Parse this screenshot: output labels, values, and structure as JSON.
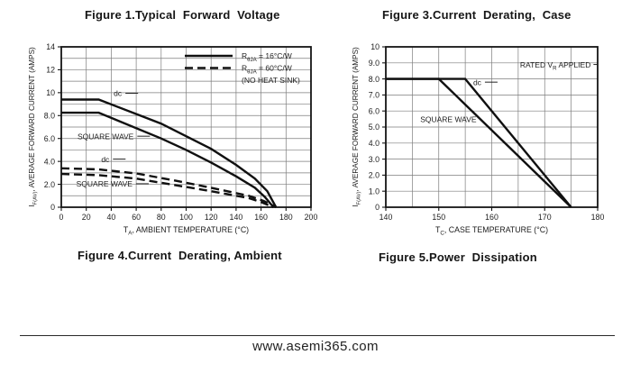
{
  "page": {
    "website": "www.asemi365.com",
    "ink_color": "#1c1c1c",
    "background_color": "#ffffff"
  },
  "chart_data": [
    {
      "type": "line",
      "title": "Figure 1.Typical  Forward  Voltage",
      "caption": "Figure 4.Current  Derating, Ambient",
      "xlabel": [
        {
          "t": "T"
        },
        {
          "t": "A",
          "sub": true
        },
        {
          "t": ", AMBIENT TEMPERATURE (°C)"
        }
      ],
      "ylabel": [
        {
          "t": "I"
        },
        {
          "t": "F(AV)",
          "sub": true
        },
        {
          "t": ", AVERAGE FORWARD CURRENT (AMPS)"
        }
      ],
      "xlim": [
        0,
        200
      ],
      "ylim": [
        0,
        14
      ],
      "grid": {
        "x_step": 20,
        "y_step": 1,
        "on": true
      },
      "xticks": [
        {
          "v": 0,
          "l": "0"
        },
        {
          "v": 20,
          "l": "20"
        },
        {
          "v": 40,
          "l": "40"
        },
        {
          "v": 60,
          "l": "60"
        },
        {
          "v": 80,
          "l": "80"
        },
        {
          "v": 100,
          "l": "100"
        },
        {
          "v": 120,
          "l": "120"
        },
        {
          "v": 140,
          "l": "140"
        },
        {
          "v": 160,
          "l": "160"
        },
        {
          "v": 180,
          "l": "180"
        },
        {
          "v": 200,
          "l": "200"
        }
      ],
      "yticks": [
        {
          "v": 0,
          "l": "0"
        },
        {
          "v": 2,
          "l": "2.0"
        },
        {
          "v": 4,
          "l": "4.0"
        },
        {
          "v": 6,
          "l": "6.0"
        },
        {
          "v": 8,
          "l": "8.0"
        },
        {
          "v": 10,
          "l": "10"
        },
        {
          "v": 12,
          "l": "12"
        },
        {
          "v": 14,
          "l": "14"
        }
      ],
      "legend": {
        "position": "top-right",
        "items": [
          {
            "style": "solid",
            "segments": [
              {
                "t": "R"
              },
              {
                "t": "θJA",
                "sub": true
              },
              {
                "t": " = 16°C/W"
              }
            ]
          },
          {
            "style": "dashed",
            "segments": [
              {
                "t": "R"
              },
              {
                "t": "θJA",
                "sub": true
              },
              {
                "t": " = 60°C/W"
              }
            ]
          },
          {
            "segments": [
              {
                "t": "(NO HEAT SINK)"
              }
            ]
          }
        ]
      },
      "series": [
        {
          "name": "dc, RthJA=16C/W",
          "style": "solid",
          "points": [
            [
              0,
              9.4
            ],
            [
              30,
              9.4
            ],
            [
              80,
              7.3
            ],
            [
              100,
              6.2
            ],
            [
              120,
              5.1
            ],
            [
              140,
              3.7
            ],
            [
              155,
              2.5
            ],
            [
              165,
              1.4
            ],
            [
              172,
              0
            ]
          ]
        },
        {
          "name": "square wave, RthJA=16C/W",
          "style": "solid",
          "points": [
            [
              0,
              8.25
            ],
            [
              30,
              8.25
            ],
            [
              80,
              6.0
            ],
            [
              100,
              5.0
            ],
            [
              120,
              3.9
            ],
            [
              140,
              2.7
            ],
            [
              155,
              1.7
            ],
            [
              163,
              0.9
            ],
            [
              170,
              0
            ]
          ]
        },
        {
          "name": "dc, RthJA=60C/W (no heat sink)",
          "style": "dashed",
          "points": [
            [
              0,
              3.4
            ],
            [
              30,
              3.3
            ],
            [
              60,
              2.95
            ],
            [
              90,
              2.35
            ],
            [
              120,
              1.7
            ],
            [
              150,
              1.0
            ],
            [
              162,
              0.55
            ],
            [
              172,
              0
            ]
          ]
        },
        {
          "name": "square wave, RthJA=60C/W (no heat sink)",
          "style": "dashed",
          "points": [
            [
              0,
              2.9
            ],
            [
              30,
              2.8
            ],
            [
              60,
              2.5
            ],
            [
              90,
              1.95
            ],
            [
              120,
              1.4
            ],
            [
              150,
              0.8
            ],
            [
              160,
              0.45
            ],
            [
              170,
              0
            ]
          ]
        }
      ],
      "annotations": [
        {
          "segments": [
            {
              "t": "dc"
            }
          ],
          "x": 42,
          "y": 9.95,
          "dash": true
        },
        {
          "segments": [
            {
              "t": "SQUARE WAVE"
            }
          ],
          "x": 13,
          "y": 6.2,
          "dash": true
        },
        {
          "segments": [
            {
              "t": "dc"
            }
          ],
          "x": 32,
          "y": 4.2,
          "dash": true
        },
        {
          "segments": [
            {
              "t": "SQUARE WAVE"
            }
          ],
          "x": 12,
          "y": 2.05,
          "dash": true
        }
      ]
    },
    {
      "type": "line",
      "title": "Figure 3.Current  Derating,  Case",
      "caption": "Figure 5.Power  Dissipation",
      "xlabel": [
        {
          "t": "T"
        },
        {
          "t": "C",
          "sub": true
        },
        {
          "t": ", CASE TEMPERATURE (°C)"
        }
      ],
      "ylabel": [
        {
          "t": "I"
        },
        {
          "t": "F(AV)",
          "sub": true
        },
        {
          "t": ", AVERAGE FORWARD CURRENT (AMPS)"
        }
      ],
      "xlim": [
        140,
        180
      ],
      "ylim": [
        0,
        10
      ],
      "grid": {
        "x_step": 5,
        "y_step": 1,
        "on": true
      },
      "xticks": [
        {
          "v": 140,
          "l": "140"
        },
        {
          "v": 150,
          "l": "150"
        },
        {
          "v": 160,
          "l": "160"
        },
        {
          "v": 170,
          "l": "170"
        },
        {
          "v": 180,
          "l": "180"
        }
      ],
      "yticks": [
        {
          "v": 0,
          "l": "0"
        },
        {
          "v": 1,
          "l": "1.0"
        },
        {
          "v": 2,
          "l": "2.0"
        },
        {
          "v": 3,
          "l": "3.0"
        },
        {
          "v": 4,
          "l": "4.0"
        },
        {
          "v": 5,
          "l": "5.0"
        },
        {
          "v": 6,
          "l": "6.0"
        },
        {
          "v": 7,
          "l": "7.0"
        },
        {
          "v": 8,
          "l": "8.0"
        },
        {
          "v": 9,
          "l": "9.0"
        },
        {
          "v": 10,
          "l": "10"
        }
      ],
      "series": [
        {
          "name": "dc",
          "style": "solid",
          "points": [
            [
              140,
              8
            ],
            [
              155,
              8
            ],
            [
              175,
              0
            ]
          ]
        },
        {
          "name": "square wave",
          "style": "solid",
          "points": [
            [
              140,
              8
            ],
            [
              150,
              8
            ],
            [
              175,
              0
            ]
          ]
        }
      ],
      "annotations": [
        {
          "segments": [
            {
              "t": "dc"
            }
          ],
          "x": 156.5,
          "y": 7.8,
          "dash": true
        },
        {
          "segments": [
            {
              "t": "SQUARE WAVE"
            }
          ],
          "x": 146.5,
          "y": 5.5
        },
        {
          "segments": [
            {
              "t": "RATED V"
            },
            {
              "t": "R",
              "sub": true
            },
            {
              "t": " APPLIED"
            }
          ],
          "x": 178.7,
          "y": 8.9,
          "anchor": "end",
          "dash": true
        }
      ]
    }
  ]
}
